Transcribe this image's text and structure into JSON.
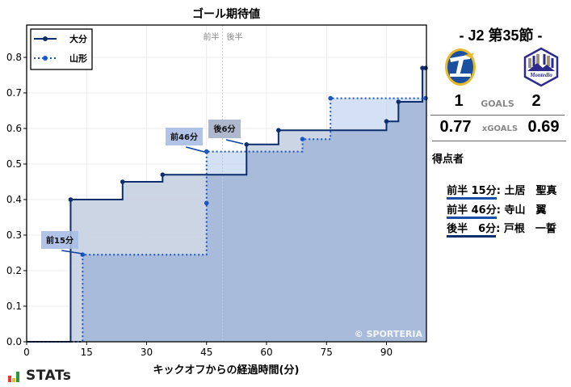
{
  "chart_data": {
    "type": "line",
    "subtype": "step-area",
    "title": "ゴール期待値",
    "xlabel": "キックオフからの経過時間(分)",
    "ylabel": "",
    "xlim": [
      0,
      100
    ],
    "ylim": [
      0,
      0.89
    ],
    "x_ticks": [
      0,
      15,
      30,
      45,
      60,
      75,
      90
    ],
    "y_ticks": [
      0.0,
      0.1,
      0.2,
      0.3,
      0.4,
      0.5,
      0.6,
      0.7,
      0.8
    ],
    "y_tick_labels": [
      "0.0",
      "0.1",
      "0.2",
      "0.3",
      "0.4",
      "0.5",
      "0.6",
      "0.7",
      "0.8"
    ],
    "grid": true,
    "legend_position": "upper left",
    "halftime_marker": {
      "x": 49,
      "left_label": "前半",
      "right_label": "後半"
    },
    "series": [
      {
        "name": "大分",
        "line_style": "solid",
        "color": "#0b2f6e",
        "fill": "#c9d3e3",
        "x": [
          0,
          11,
          24,
          34,
          55,
          63,
          90,
          93,
          99,
          100
        ],
        "y": [
          0,
          0.4,
          0.45,
          0.47,
          0.555,
          0.595,
          0.62,
          0.675,
          0.77,
          0.77
        ]
      },
      {
        "name": "山形",
        "line_style": "dotted",
        "color": "#1a56c4",
        "fill": "#c6d5ef",
        "x": [
          0,
          14,
          45,
          45,
          69,
          76,
          100
        ],
        "y": [
          0,
          0.245,
          0.39,
          0.535,
          0.57,
          0.685,
          0.685
        ]
      }
    ],
    "annotations": [
      {
        "text": "前15分",
        "x": 14,
        "y": 0.245
      },
      {
        "text": "前46分",
        "x": 45,
        "y": 0.535
      },
      {
        "text": "後6分",
        "x": 55,
        "y": 0.555
      }
    ],
    "watermark": "© SPORTERIA"
  },
  "side": {
    "round": "- J2 第35節 -",
    "home": {
      "name": "大分",
      "goals": "1",
      "xg": "0.77",
      "logo": "trinita-crest-icon"
    },
    "away": {
      "name": "山形",
      "goals": "2",
      "xg": "0.69",
      "logo": "montedio-crest-icon"
    },
    "goals_label": "GOALS",
    "xgoals_label": "xGOALS",
    "scorers_title": "得点者",
    "scorers": [
      {
        "time": "前半 15分",
        "name": ": 土居　聖真",
        "team": "山形"
      },
      {
        "time": "前半 46分",
        "name": ": 寺山　翼",
        "team": "山形"
      },
      {
        "time": "後半　6分",
        "name": ": 戸根　一誓",
        "team": "大分"
      }
    ]
  },
  "footer": {
    "brand": "STATs"
  }
}
